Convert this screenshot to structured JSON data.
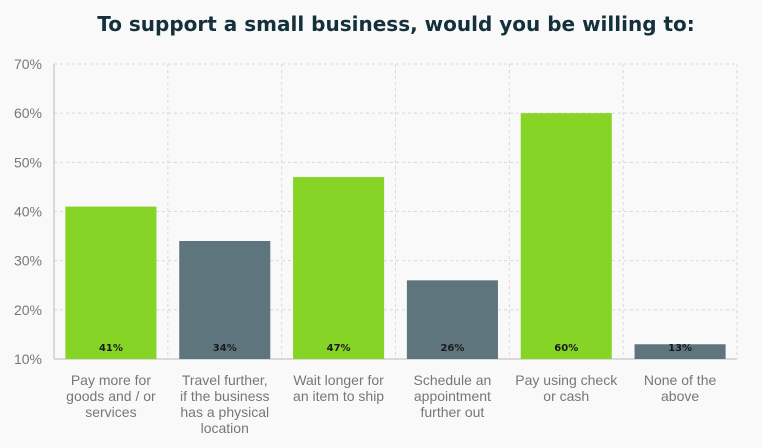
{
  "chart_data": {
    "type": "bar",
    "title": "To support a small business, would you be willing to:",
    "xlabel": "",
    "ylabel": "",
    "ylim": [
      10,
      70
    ],
    "yticks": [
      10,
      20,
      30,
      40,
      50,
      60,
      70
    ],
    "ytick_labels": [
      "10%",
      "20%",
      "30%",
      "40%",
      "50%",
      "60%",
      "70%"
    ],
    "grid": true,
    "categories": [
      "Pay more for goods and / or services",
      "Travel further, if the business has a physical location",
      "Wait longer for an item to ship",
      "Schedule an appointment further out",
      "Pay using check or cash",
      "None of the above"
    ],
    "category_lines": [
      [
        "Pay more for",
        "goods and / or",
        "services"
      ],
      [
        "Travel further,",
        "if the business",
        "has a physical",
        "location"
      ],
      [
        "Wait longer for",
        "an item to ship"
      ],
      [
        "Schedule an",
        "appointment",
        "further out"
      ],
      [
        "Pay using check",
        "or cash"
      ],
      [
        "None of the",
        "above"
      ]
    ],
    "values": [
      41,
      34,
      47,
      26,
      60,
      13
    ],
    "data_labels": [
      "41%",
      "34%",
      "47%",
      "26%",
      "60%",
      "13%"
    ],
    "bar_colors": [
      "#86d425",
      "#5f757d",
      "#86d425",
      "#5f757d",
      "#86d425",
      "#5f757d"
    ]
  }
}
